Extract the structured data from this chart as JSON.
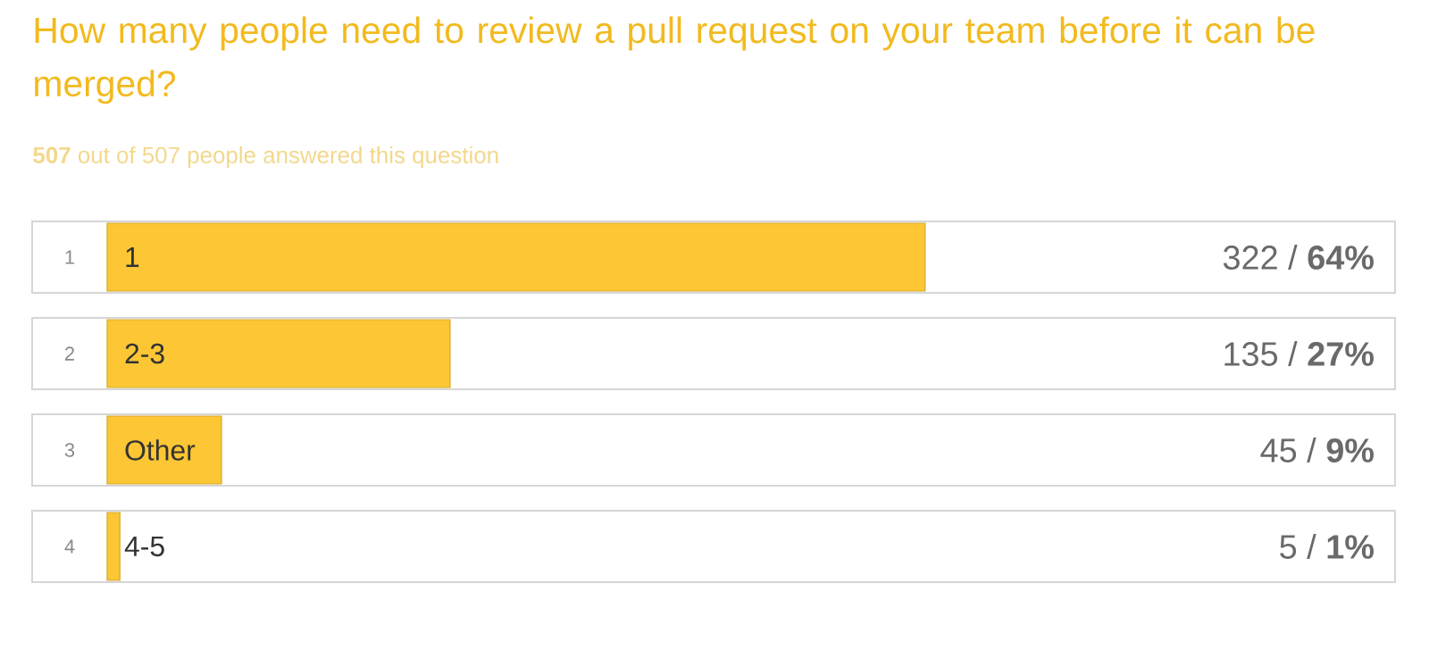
{
  "chart_data": {
    "type": "bar",
    "orientation": "horizontal",
    "title": "How many people need to review a pull request on your team before it can be merged?",
    "subtitle": "**507** out of 507 people answered this question",
    "categories": [
      "1",
      "2-3",
      "Other",
      "4-5"
    ],
    "values": [
      322,
      135,
      45,
      5
    ],
    "value_labels": [
      "322 / **64%**",
      "135 / **27%**",
      "45 / **9%**",
      "5 / **1%**"
    ],
    "color": "#fcc634",
    "tick_labels": "y",
    "annotations": [
      "1",
      "2",
      "3",
      "4"
    ]
  }
}
